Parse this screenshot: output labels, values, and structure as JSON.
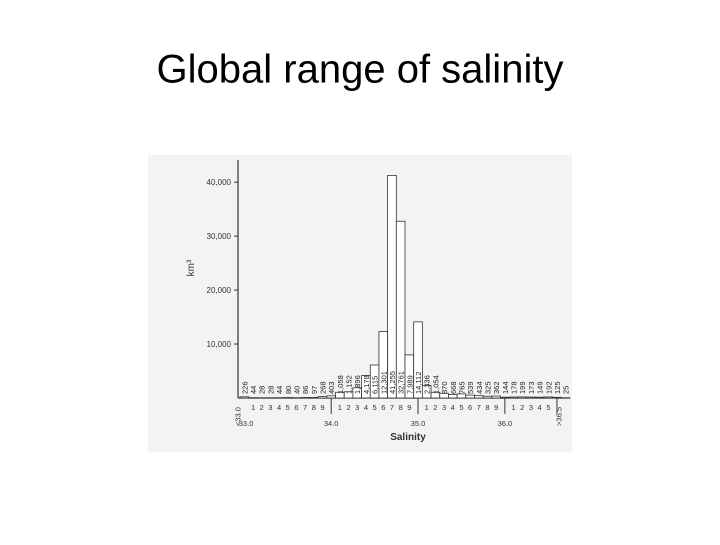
{
  "title": "Global range of salinity",
  "chart_data": {
    "type": "bar",
    "y_label": "km³",
    "x_label": "Salinity",
    "group_labels": [
      "33.0",
      "34.0",
      "35.0",
      "36.0"
    ],
    "categories": [
      "<33.0",
      "1",
      "2",
      "3",
      "4",
      "5",
      "6",
      "7",
      "8",
      "9",
      null,
      "1",
      "2",
      "3",
      "4",
      "5",
      "6",
      "7",
      "8",
      "9",
      null,
      "1",
      "2",
      "3",
      "4",
      "5",
      "6",
      "7",
      "8",
      "9",
      null,
      "1",
      "2",
      "3",
      "4",
      "5",
      null,
      ">36.5"
    ],
    "values": [
      226,
      44,
      28,
      28,
      44,
      80,
      40,
      86,
      97,
      268,
      403,
      1058,
      1152,
      1896,
      4178,
      6115,
      12301,
      41255,
      32761,
      7989,
      14112,
      2336,
      1054,
      870,
      668,
      765,
      539,
      434,
      325,
      362,
      144,
      178,
      199,
      173,
      149,
      192,
      125,
      25
    ],
    "value_labels": [
      "226",
      "44",
      "28",
      "28",
      "44",
      "80",
      "40",
      "86",
      "97",
      "268",
      "403",
      "1,058",
      "1,152",
      "1,896",
      "4,178",
      "6,115",
      "12,301",
      "41,255",
      "32,761",
      "7,989",
      "14,112",
      "2,336",
      "1,054",
      "870",
      "668",
      "765",
      "539",
      "434",
      "325",
      "362",
      "144",
      "178",
      "199",
      "173",
      "149",
      "192",
      "125",
      "25"
    ],
    "color": "#ffffff",
    "ylim": [
      0,
      43000
    ],
    "yticks": [
      {
        "value": 10000,
        "label": "10,000"
      },
      {
        "value": 20000,
        "label": "20,000"
      },
      {
        "value": 30000,
        "label": "30,000"
      },
      {
        "value": 40000,
        "label": "40,000"
      }
    ]
  }
}
